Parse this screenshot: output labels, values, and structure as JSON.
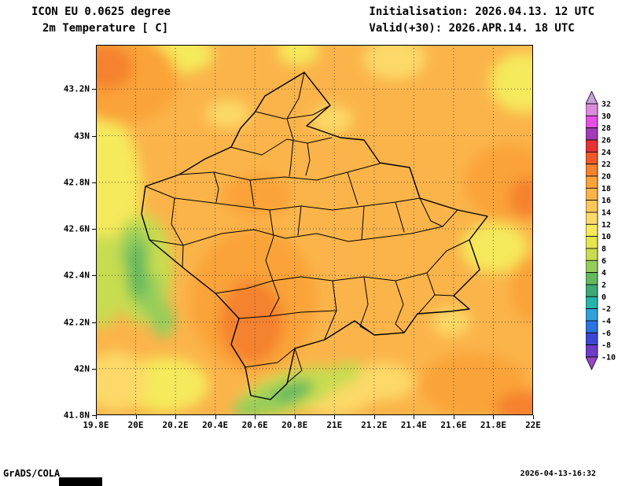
{
  "header": {
    "model": "ICON EU 0.0625 degree",
    "variable": "2m Temperature [ C]",
    "initialisation": "Initialisation: 2026.04.13. 12 UTC",
    "valid": "Valid(+30): 2026.APR.14. 18 UTC"
  },
  "footer": {
    "credit": "GrADS/COLA",
    "timestamp": "2026-04-13-16:32"
  },
  "map": {
    "axis": {
      "lon_min": 19.8,
      "lon_max": 22.0,
      "lat_min": 41.8,
      "lat_max": 43.39
    },
    "x_ticks": [
      {
        "label": "19.8E",
        "lon": 19.8
      },
      {
        "label": "20E",
        "lon": 20.0
      },
      {
        "label": "20.2E",
        "lon": 20.2
      },
      {
        "label": "20.4E",
        "lon": 20.4
      },
      {
        "label": "20.6E",
        "lon": 20.6
      },
      {
        "label": "20.8E",
        "lon": 20.8
      },
      {
        "label": "21E",
        "lon": 21.0
      },
      {
        "label": "21.2E",
        "lon": 21.2
      },
      {
        "label": "21.4E",
        "lon": 21.4
      },
      {
        "label": "21.6E",
        "lon": 21.6
      },
      {
        "label": "21.8E",
        "lon": 21.8
      },
      {
        "label": "22E",
        "lon": 22.0
      }
    ],
    "y_ticks": [
      {
        "label": "43.2N",
        "lat": 43.2
      },
      {
        "label": "43N",
        "lat": 43.0
      },
      {
        "label": "42.8N",
        "lat": 42.8
      },
      {
        "label": "42.6N",
        "lat": 42.6
      },
      {
        "label": "42.4N",
        "lat": 42.4
      },
      {
        "label": "42.2N",
        "lat": 42.2
      },
      {
        "label": "42N",
        "lat": 42.0
      },
      {
        "label": "41.8N",
        "lat": 41.8
      }
    ],
    "base_field_color": "#fbb44a"
  },
  "colorbar": {
    "tick_labels": [
      "32",
      "30",
      "28",
      "26",
      "24",
      "22",
      "20",
      "18",
      "16",
      "14",
      "12",
      "10",
      "8",
      "6",
      "4",
      "2",
      "0",
      "-2",
      "-4",
      "-6",
      "-8",
      "-10"
    ],
    "cell_colors_top_to_bottom": [
      "#c8a0dc",
      "#dc8cdc",
      "#e650e6",
      "#a03cb4",
      "#e63232",
      "#f05a28",
      "#f5822d",
      "#faa338",
      "#fbb44a",
      "#fcc75a",
      "#fcd968",
      "#f5e95c",
      "#e6e44f",
      "#c8dc50",
      "#96cd5a",
      "#64b95f",
      "#3caa78",
      "#28b4aa",
      "#32a0dc",
      "#2d73e1",
      "#3c46d2",
      "#6e3cc8",
      "#9646c8"
    ]
  }
}
